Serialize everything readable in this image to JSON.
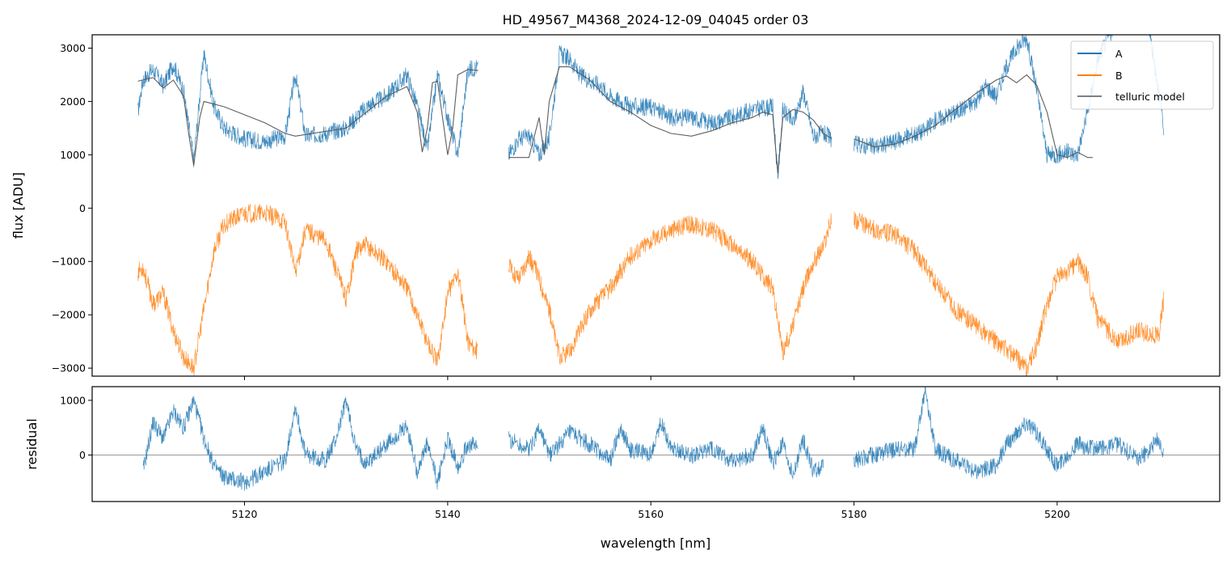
{
  "chart_data": [
    {
      "type": "line",
      "title": "HD_49567_M4368_2024-12-09_04045  order 03",
      "xlabel": "",
      "ylabel": "flux [ADU]",
      "xlim": [
        5105,
        5216
      ],
      "ylim": [
        -3150,
        3250
      ],
      "yticks": [
        3000,
        2000,
        1000,
        0,
        -1000,
        -2000,
        -3000
      ],
      "ytick_labels": [
        "3000",
        "2000",
        "1000",
        "0",
        "−1000",
        "−2000",
        "−3000"
      ],
      "xticks": [
        5120,
        5140,
        5160,
        5180,
        5200
      ],
      "legend": {
        "placement": "top-right",
        "entries": [
          "A",
          "B",
          "telluric model"
        ]
      },
      "segments": [
        [
          5109.5,
          5143.2
        ],
        [
          5146.0,
          5177.8
        ],
        [
          5180.0,
          5210.5
        ]
      ],
      "series": [
        {
          "name": "A",
          "color": "#1f77b4",
          "x": [
            5109.5,
            5110,
            5111,
            5112,
            5113,
            5114,
            5115,
            5116,
            5117,
            5118,
            5120,
            5122,
            5124,
            5125,
            5126,
            5128,
            5130,
            5132,
            5134,
            5136,
            5137,
            5138,
            5139,
            5140,
            5141,
            5142,
            5143,
            5146,
            5147,
            5148,
            5149,
            5150,
            5151,
            5152,
            5153,
            5154,
            5155,
            5156,
            5158,
            5160,
            5162,
            5164,
            5166,
            5168,
            5170,
            5172,
            5172.5,
            5173,
            5174,
            5175,
            5176,
            5177,
            5177.8,
            5180,
            5182,
            5184,
            5186,
            5187,
            5188,
            5190,
            5192,
            5193,
            5194,
            5195,
            5196,
            5197,
            5198,
            5199,
            5200,
            5201,
            5202,
            5203,
            5204,
            5205,
            5206,
            5207,
            5208,
            5209,
            5210,
            5210.5
          ],
          "y": [
            1800,
            2400,
            2600,
            2300,
            2700,
            2200,
            900,
            2900,
            1900,
            1500,
            1300,
            1250,
            1350,
            2500,
            1350,
            1400,
            1500,
            1900,
            2100,
            2500,
            1900,
            1100,
            2500,
            1700,
            1000,
            2600,
            2650,
            1000,
            1300,
            1350,
            1000,
            1300,
            2900,
            2800,
            2500,
            2400,
            2300,
            2100,
            1900,
            1900,
            1700,
            1700,
            1600,
            1700,
            1850,
            1900,
            600,
            1850,
            1600,
            2200,
            1350,
            1400,
            1300,
            1200,
            1150,
            1250,
            1400,
            1450,
            1650,
            1800,
            2000,
            2300,
            2100,
            2650,
            3000,
            3200,
            2200,
            1000,
            1000,
            1050,
            1000,
            1800,
            2800,
            3200,
            3500,
            3600,
            3500,
            3400,
            2200,
            1400
          ]
        },
        {
          "name": "B",
          "color": "#ff7f0e",
          "x": [
            5109.5,
            5110,
            5111,
            5112,
            5113,
            5114,
            5115,
            5116,
            5117,
            5118,
            5120,
            5122,
            5124,
            5125,
            5126,
            5128,
            5130,
            5131,
            5132,
            5134,
            5136,
            5138,
            5139,
            5140,
            5141,
            5142,
            5143,
            5146,
            5147,
            5148,
            5149,
            5150,
            5151,
            5152,
            5153,
            5154,
            5156,
            5158,
            5160,
            5162,
            5164,
            5166,
            5168,
            5170,
            5172,
            5173,
            5174,
            5175,
            5176,
            5177,
            5177.8,
            5180,
            5182,
            5184,
            5186,
            5188,
            5190,
            5192,
            5194,
            5196,
            5197,
            5198,
            5199,
            5200,
            5201,
            5202,
            5203,
            5204,
            5206,
            5208,
            5210,
            5210.5
          ],
          "y": [
            -1200,
            -1100,
            -1800,
            -1600,
            -2300,
            -2800,
            -3000,
            -1900,
            -800,
            -300,
            -100,
            -100,
            -250,
            -1200,
            -400,
            -600,
            -1700,
            -800,
            -700,
            -1000,
            -1500,
            -2500,
            -2900,
            -1600,
            -1200,
            -2500,
            -2700,
            -1100,
            -1300,
            -900,
            -1300,
            -1900,
            -2800,
            -2700,
            -2300,
            -1900,
            -1500,
            -900,
            -600,
            -400,
            -300,
            -400,
            -700,
            -1000,
            -1500,
            -2700,
            -2200,
            -1500,
            -1000,
            -700,
            -200,
            -200,
            -400,
            -500,
            -800,
            -1400,
            -1900,
            -2200,
            -2500,
            -2800,
            -3000,
            -2600,
            -1800,
            -1300,
            -1200,
            -1000,
            -1300,
            -2100,
            -2500,
            -2300,
            -2400,
            -1700
          ]
        },
        {
          "name": "telluric model",
          "color": "#555555",
          "x": [
            5109.5,
            5111,
            5112,
            5113,
            5114,
            5114.5,
            5115,
            5115.6,
            5116,
            5118,
            5122,
            5124,
            5125,
            5126,
            5130,
            5134,
            5136,
            5137,
            5137.5,
            5138,
            5138.5,
            5139,
            5140,
            5140.5,
            5141,
            5142,
            5143,
            5146,
            5148,
            5149,
            5149.5,
            5150,
            5151,
            5152,
            5154,
            5156,
            5158,
            5160,
            5162,
            5164,
            5166,
            5168,
            5170,
            5171,
            5172,
            5172.5,
            5173,
            5174,
            5175,
            5176,
            5177,
            5177.8,
            5180,
            5182,
            5184,
            5186,
            5188,
            5190,
            5192,
            5194,
            5195,
            5196,
            5197,
            5198,
            5199,
            5200,
            5201,
            5202,
            5203,
            5203.5
          ],
          "y": [
            2380,
            2450,
            2250,
            2400,
            2100,
            1400,
            800,
            1700,
            2000,
            1900,
            1600,
            1400,
            1350,
            1380,
            1500,
            2100,
            2280,
            1800,
            1050,
            1500,
            2350,
            2380,
            1000,
            1500,
            2500,
            2600,
            2580,
            950,
            950,
            1700,
            1000,
            2000,
            2650,
            2650,
            2400,
            2000,
            1800,
            1550,
            1400,
            1350,
            1450,
            1600,
            1700,
            1800,
            1750,
            650,
            1700,
            1850,
            1800,
            1650,
            1400,
            1300,
            1300,
            1150,
            1200,
            1350,
            1550,
            1850,
            2150,
            2400,
            2480,
            2350,
            2500,
            2300,
            1800,
            1000,
            950,
            1050,
            950,
            950
          ]
        }
      ]
    },
    {
      "type": "line",
      "title": "",
      "xlabel": "wavelength [nm]",
      "ylabel": "residual",
      "xlim": [
        5105,
        5216
      ],
      "ylim": [
        -850,
        1250
      ],
      "yticks": [
        1000,
        0
      ],
      "ytick_labels": [
        "1000",
        "0"
      ],
      "xticks": [
        5120,
        5140,
        5160,
        5180,
        5200
      ],
      "xtick_labels": [
        "5120",
        "5140",
        "5160",
        "5180",
        "5200"
      ],
      "hline": 0,
      "series": [
        {
          "color": "#1f77b4",
          "x": [
            5110,
            5111,
            5112,
            5113,
            5114,
            5115,
            5116,
            5117,
            5118,
            5120,
            5122,
            5124,
            5125,
            5126,
            5128,
            5129,
            5130,
            5131,
            5132,
            5134,
            5136,
            5137,
            5138,
            5139,
            5140,
            5141,
            5142,
            5143,
            5146,
            5147,
            5148,
            5149,
            5150,
            5151,
            5152,
            5154,
            5156,
            5157,
            5158,
            5160,
            5161,
            5162,
            5164,
            5166,
            5168,
            5170,
            5171,
            5172,
            5173,
            5174,
            5175,
            5176,
            5177,
            5180,
            5182,
            5184,
            5186,
            5187,
            5188,
            5190,
            5192,
            5194,
            5195,
            5196,
            5197,
            5198,
            5199,
            5200,
            5202,
            5204,
            5206,
            5208,
            5210,
            5210.5
          ],
          "y": [
            -300,
            600,
            300,
            800,
            500,
            1000,
            300,
            -200,
            -400,
            -500,
            -300,
            -100,
            900,
            0,
            -100,
            300,
            1000,
            100,
            -150,
            200,
            500,
            -300,
            200,
            -500,
            300,
            -200,
            200,
            150,
            300,
            200,
            100,
            500,
            0,
            200,
            400,
            200,
            -100,
            500,
            100,
            0,
            600,
            150,
            0,
            100,
            -100,
            0,
            500,
            -150,
            200,
            -400,
            300,
            -300,
            -200,
            -100,
            0,
            100,
            100,
            1200,
            100,
            -100,
            -300,
            -200,
            200,
            400,
            600,
            400,
            100,
            -200,
            200,
            100,
            200,
            -100,
            300,
            0
          ]
        }
      ]
    }
  ]
}
